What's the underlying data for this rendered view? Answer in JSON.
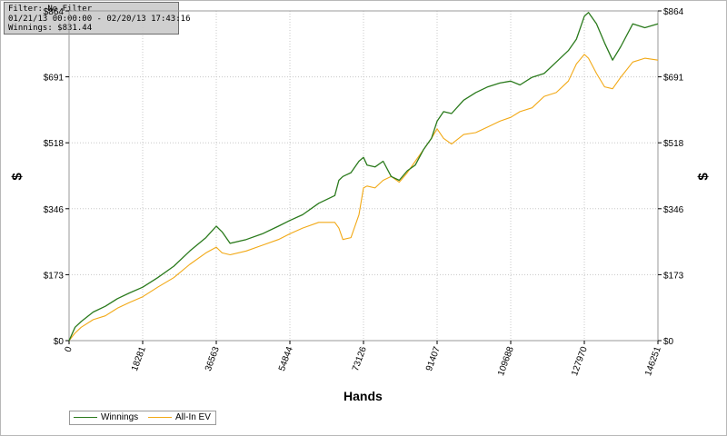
{
  "info": {
    "filter": "Filter: No Filter",
    "daterange": "01/21/13 00:00:00 - 02/20/13 17:43:16",
    "winnings": "Winnings: $831.44"
  },
  "chart_data": {
    "type": "line",
    "xlabel": "Hands",
    "ylabel": "$",
    "xlim": [
      0,
      146251
    ],
    "ylim": [
      0,
      864
    ],
    "x_ticks": [
      "0",
      "18281",
      "36563",
      "54844",
      "73126",
      "91407",
      "109688",
      "127970",
      "146251"
    ],
    "y_ticks": [
      "$0",
      "$173",
      "$346",
      "$518",
      "$691",
      "$864"
    ],
    "grid": true,
    "legend_position": "bottom-left",
    "series": [
      {
        "name": "Winnings",
        "color": "#2a7a1c",
        "x": [
          0,
          1500,
          3000,
          6000,
          9000,
          12000,
          15000,
          18281,
          22000,
          26000,
          30000,
          34000,
          36563,
          38000,
          40000,
          44000,
          48000,
          52000,
          54844,
          58000,
          62000,
          66000,
          67000,
          68000,
          70000,
          72000,
          73126,
          74000,
          76000,
          78000,
          80000,
          82000,
          84000,
          86000,
          88000,
          90000,
          91407,
          93000,
          95000,
          98000,
          101000,
          104000,
          107000,
          109688,
          112000,
          115000,
          118000,
          121000,
          124000,
          126000,
          127970,
          129000,
          131000,
          133000,
          135000,
          137000,
          140000,
          143000,
          146251
        ],
        "values": [
          0,
          35,
          50,
          75,
          90,
          110,
          125,
          140,
          165,
          195,
          235,
          270,
          300,
          285,
          255,
          265,
          280,
          300,
          315,
          330,
          360,
          380,
          420,
          430,
          440,
          470,
          480,
          460,
          455,
          470,
          430,
          420,
          445,
          460,
          500,
          530,
          575,
          600,
          595,
          630,
          650,
          665,
          675,
          680,
          670,
          690,
          700,
          730,
          760,
          790,
          850,
          860,
          830,
          780,
          735,
          770,
          830,
          820,
          830
        ]
      },
      {
        "name": "All-In EV",
        "color": "#f2a916",
        "x": [
          0,
          1500,
          3000,
          6000,
          9000,
          12000,
          15000,
          18281,
          22000,
          26000,
          30000,
          34000,
          36563,
          38000,
          40000,
          44000,
          48000,
          52000,
          54844,
          58000,
          62000,
          66000,
          67000,
          68000,
          70000,
          72000,
          73126,
          74000,
          76000,
          78000,
          80000,
          82000,
          84000,
          86000,
          88000,
          90000,
          91407,
          93000,
          95000,
          98000,
          101000,
          104000,
          107000,
          109688,
          112000,
          115000,
          118000,
          121000,
          124000,
          126000,
          127970,
          129000,
          131000,
          133000,
          135000,
          137000,
          140000,
          143000,
          146251
        ],
        "values": [
          0,
          20,
          35,
          55,
          65,
          85,
          100,
          115,
          140,
          165,
          200,
          230,
          245,
          230,
          225,
          235,
          250,
          265,
          280,
          295,
          310,
          310,
          295,
          265,
          270,
          330,
          400,
          405,
          400,
          420,
          430,
          415,
          440,
          470,
          500,
          530,
          555,
          530,
          515,
          540,
          545,
          560,
          575,
          585,
          600,
          610,
          640,
          650,
          680,
          725,
          750,
          740,
          700,
          665,
          660,
          690,
          730,
          740,
          735
        ]
      }
    ]
  }
}
